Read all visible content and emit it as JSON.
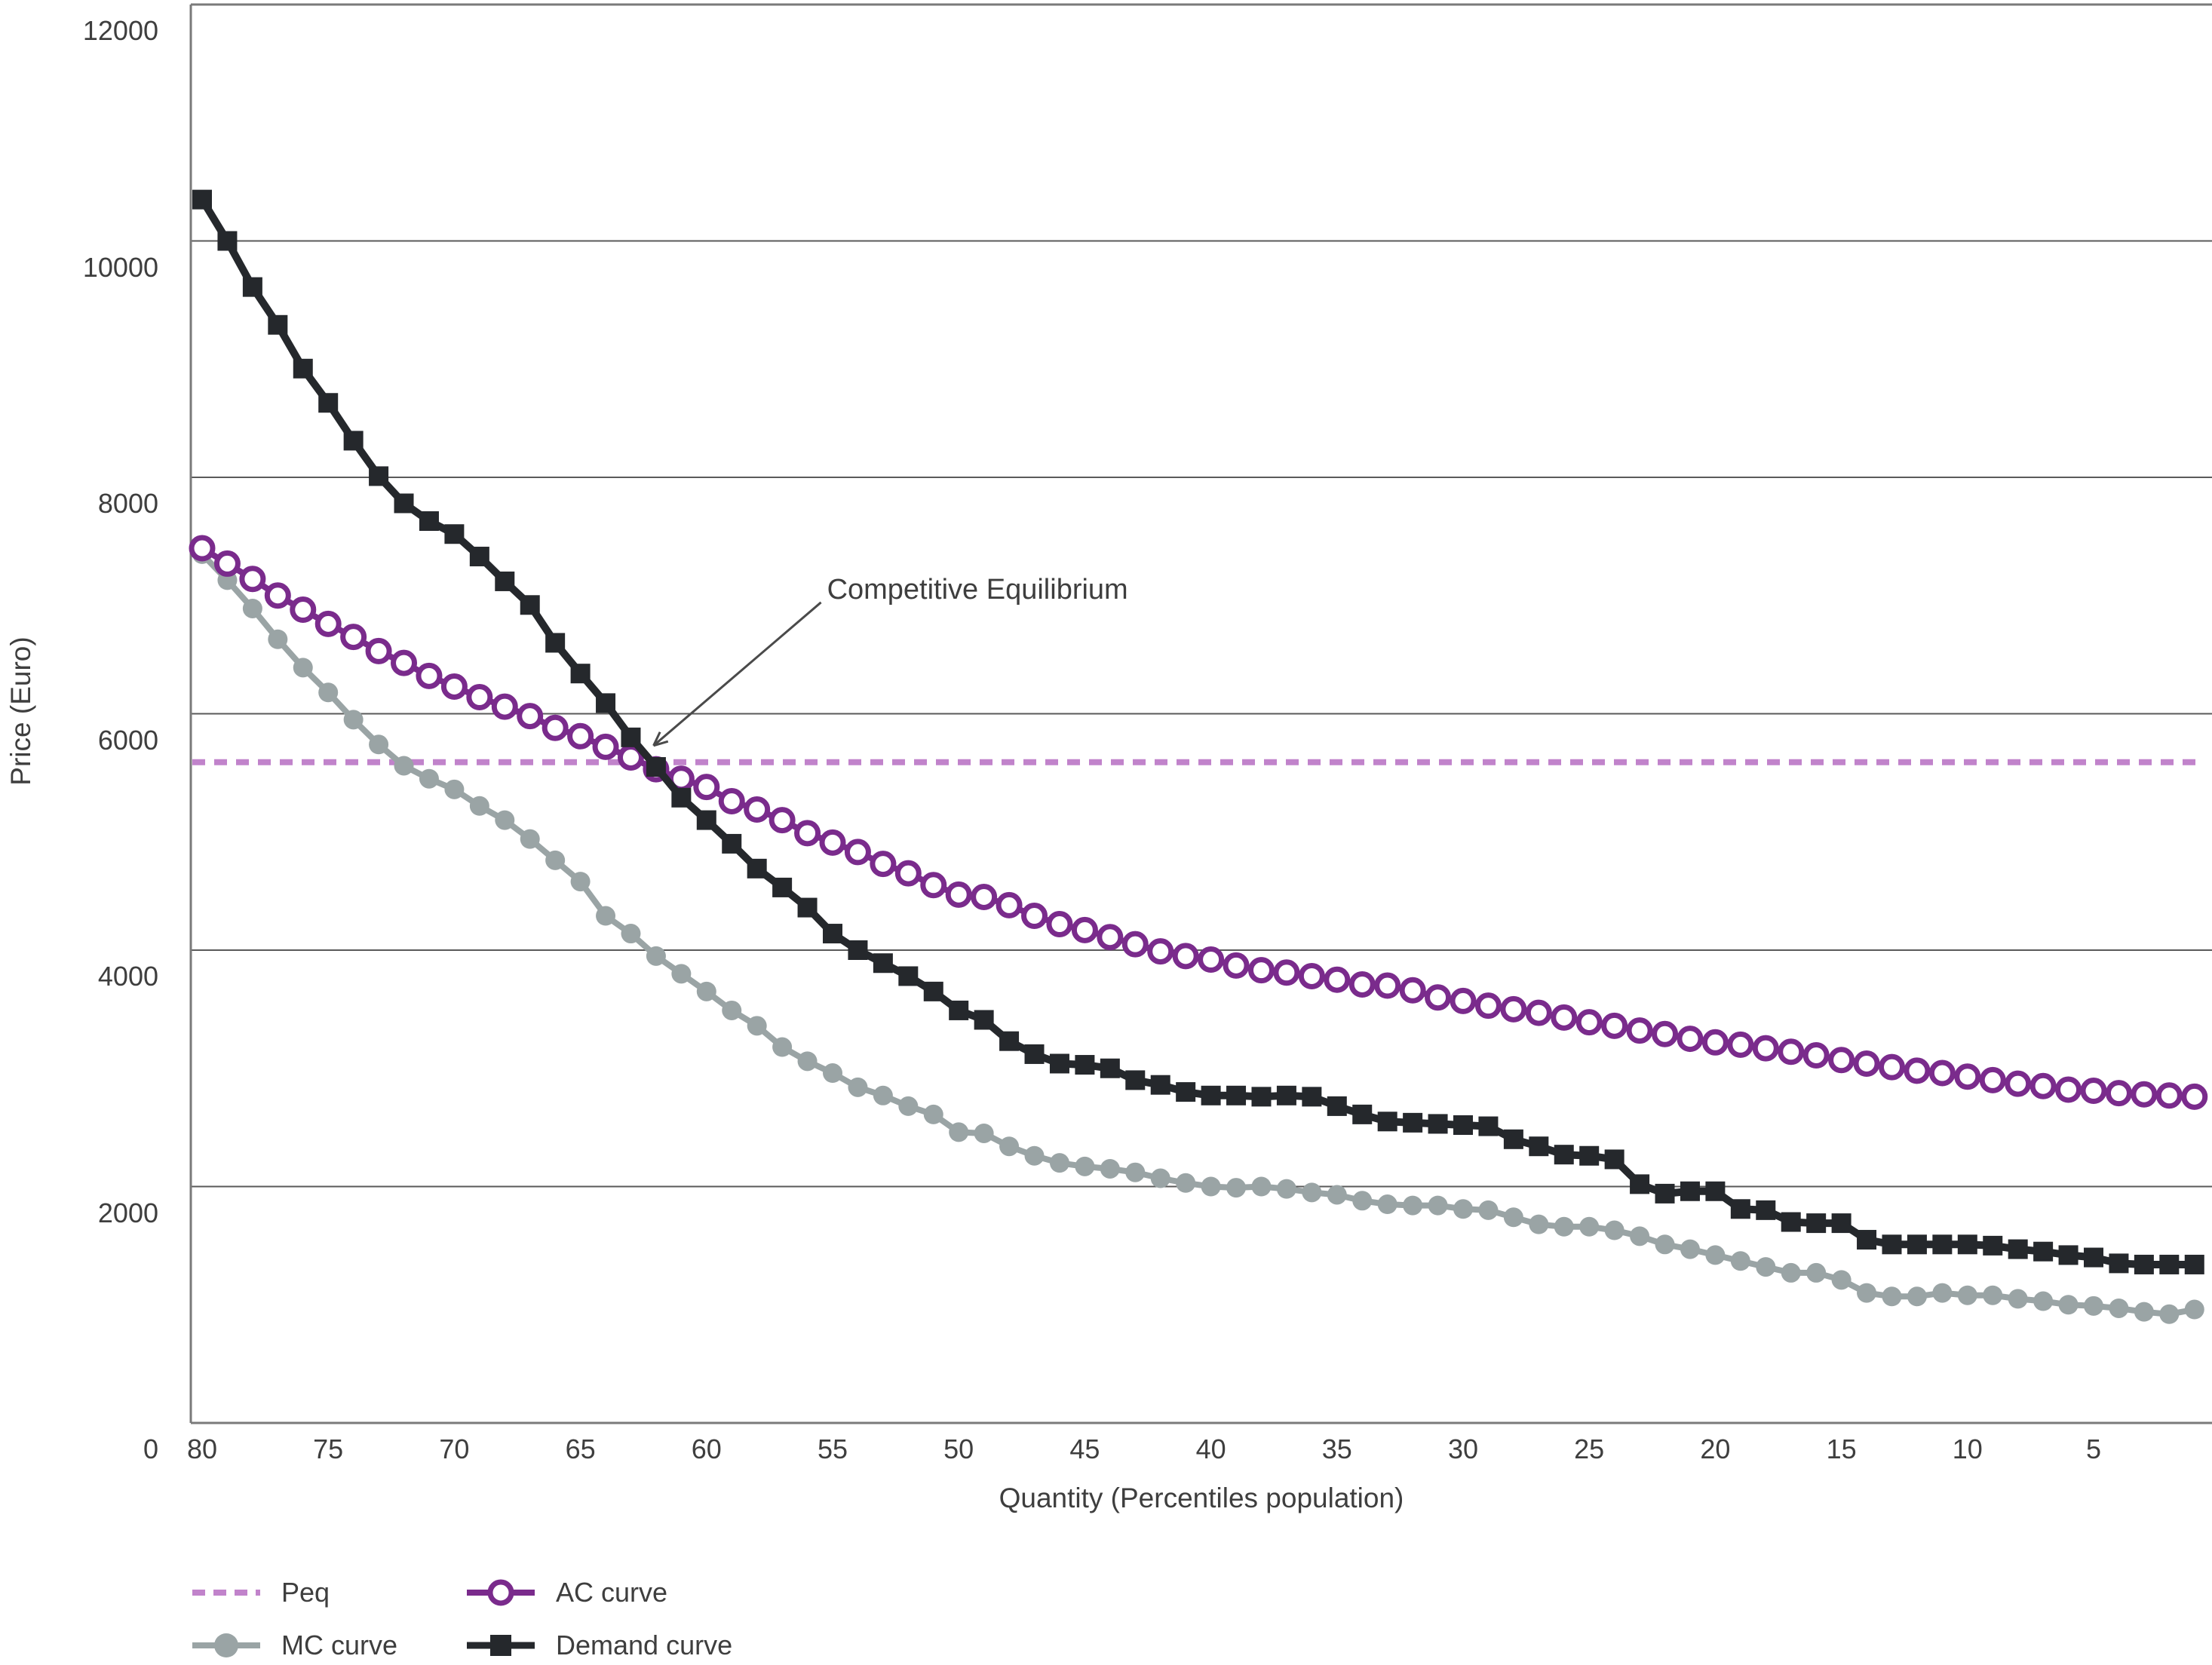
{
  "chart_data": {
    "type": "line",
    "title": "",
    "xlabel": "Quantity (Percentiles population)",
    "ylabel": "Price (Euro)",
    "origin_label": "0",
    "x_tick_labels": [
      80,
      75,
      70,
      65,
      60,
      55,
      50,
      45,
      40,
      35,
      30,
      25,
      20,
      15,
      10,
      5
    ],
    "y_tick_labels": [
      12000,
      10000,
      8000,
      6000,
      4000,
      2000
    ],
    "ylim": [
      0,
      12000
    ],
    "xlim_descending": [
      80,
      1
    ],
    "grid": "horizontal-only",
    "legend_position": "bottom-left, two columns",
    "x": [
      80,
      79,
      78,
      77,
      76,
      75,
      74,
      73,
      72,
      71,
      70,
      69,
      68,
      67,
      66,
      65,
      64,
      63,
      62,
      61,
      60,
      59,
      58,
      57,
      56,
      55,
      54,
      53,
      52,
      51,
      50,
      49,
      48,
      47,
      46,
      45,
      44,
      43,
      42,
      41,
      40,
      39,
      38,
      37,
      36,
      35,
      34,
      33,
      32,
      31,
      30,
      29,
      28,
      27,
      26,
      25,
      24,
      23,
      22,
      21,
      20,
      19,
      18,
      17,
      16,
      15,
      14,
      13,
      12,
      11,
      10,
      9,
      8,
      7,
      6,
      5,
      4,
      3,
      2,
      1
    ],
    "series": [
      {
        "name": "Peq",
        "kind": "hline",
        "value": 5590,
        "color": "#c183cb",
        "dashed": true
      },
      {
        "name": "MC curve",
        "kind": "line-markers",
        "marker": "filled-circle",
        "color": "#9aa4a5",
        "values": [
          7350,
          7130,
          6890,
          6630,
          6390,
          6180,
          5950,
          5740,
          5560,
          5450,
          5360,
          5220,
          5100,
          4940,
          4760,
          4580,
          4290,
          4140,
          3950,
          3800,
          3650,
          3490,
          3360,
          3180,
          3060,
          2960,
          2840,
          2770,
          2680,
          2610,
          2460,
          2450,
          2340,
          2260,
          2200,
          2170,
          2150,
          2120,
          2070,
          2030,
          2000,
          1990,
          2000,
          1980,
          1950,
          1930,
          1880,
          1850,
          1840,
          1840,
          1810,
          1800,
          1740,
          1680,
          1660,
          1660,
          1630,
          1580,
          1510,
          1470,
          1420,
          1370,
          1320,
          1270,
          1270,
          1210,
          1100,
          1070,
          1070,
          1100,
          1080,
          1080,
          1050,
          1030,
          1000,
          990,
          970,
          940,
          920,
          960
        ]
      },
      {
        "name": "AC curve",
        "kind": "line-markers",
        "marker": "open-circle",
        "color": "#7a2b8c",
        "values": [
          7400,
          7270,
          7140,
          7000,
          6880,
          6760,
          6650,
          6530,
          6430,
          6320,
          6230,
          6140,
          6060,
          5980,
          5880,
          5810,
          5720,
          5630,
          5530,
          5450,
          5380,
          5260,
          5190,
          5100,
          4990,
          4910,
          4830,
          4730,
          4650,
          4550,
          4470,
          4450,
          4380,
          4290,
          4220,
          4170,
          4110,
          4050,
          3990,
          3950,
          3920,
          3870,
          3830,
          3810,
          3780,
          3750,
          3710,
          3700,
          3660,
          3600,
          3570,
          3530,
          3500,
          3470,
          3430,
          3390,
          3360,
          3320,
          3290,
          3250,
          3220,
          3200,
          3170,
          3140,
          3110,
          3070,
          3040,
          3010,
          2980,
          2960,
          2930,
          2900,
          2870,
          2850,
          2820,
          2810,
          2790,
          2780,
          2770,
          2760
        ]
      },
      {
        "name": "Demand curve",
        "kind": "line-markers",
        "marker": "filled-square",
        "color": "#25282c",
        "values": [
          10350,
          10000,
          9610,
          9290,
          8920,
          8630,
          8310,
          8010,
          7780,
          7630,
          7520,
          7330,
          7120,
          6920,
          6600,
          6340,
          6090,
          5800,
          5550,
          5290,
          5100,
          4900,
          4690,
          4530,
          4360,
          4140,
          4000,
          3890,
          3780,
          3650,
          3490,
          3410,
          3230,
          3120,
          3040,
          3030,
          3000,
          2900,
          2860,
          2800,
          2770,
          2770,
          2760,
          2770,
          2760,
          2680,
          2610,
          2550,
          2540,
          2530,
          2520,
          2510,
          2400,
          2340,
          2270,
          2260,
          2230,
          2020,
          1940,
          1960,
          1960,
          1810,
          1800,
          1700,
          1690,
          1690,
          1550,
          1510,
          1510,
          1510,
          1510,
          1500,
          1470,
          1450,
          1420,
          1400,
          1350,
          1340,
          1340,
          1340
        ]
      }
    ],
    "annotation": {
      "text": "Competitive Equilibrium",
      "points_to": {
        "quantity": 62.1,
        "price": 5730
      }
    },
    "colors": {
      "gridline": "#5a5a5a",
      "axis_frame": "#7a7a7a",
      "text": "#3e3e3e",
      "background": "#ffffff"
    }
  },
  "legend": {
    "items": [
      {
        "label": "Peq",
        "series": "Peq"
      },
      {
        "label": "AC curve",
        "series": "AC curve"
      },
      {
        "label": "MC curve",
        "series": "MC curve"
      },
      {
        "label": "Demand curve",
        "series": "Demand curve"
      }
    ]
  }
}
